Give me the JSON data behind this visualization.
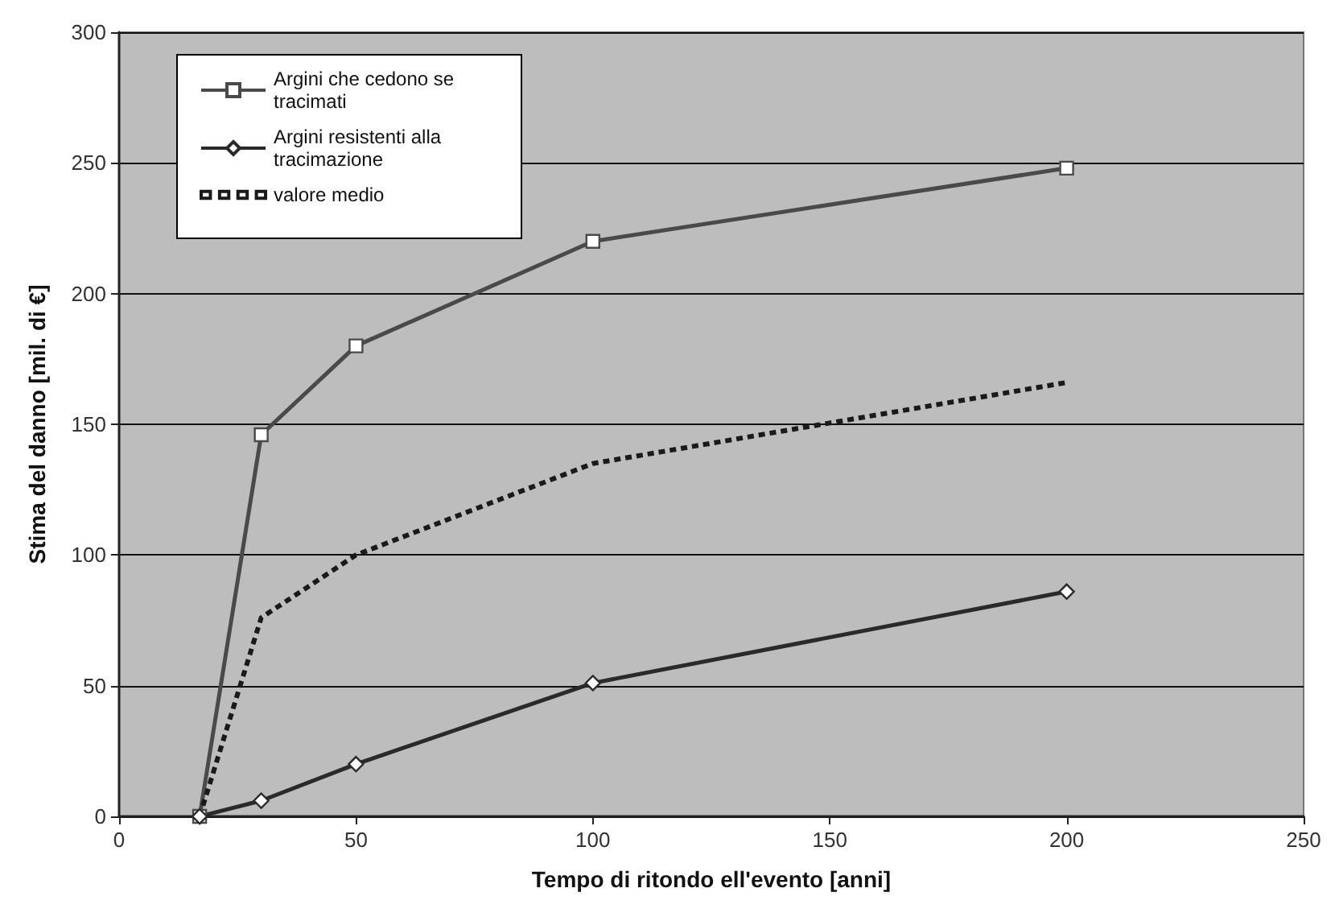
{
  "chart_data": {
    "type": "line",
    "xlabel": "Tempo di ritondo ell'evento [anni]",
    "ylabel": "Stima del danno [mil. di €]",
    "x": [
      17,
      30,
      50,
      100,
      200
    ],
    "series": [
      {
        "name": "Argini che cedono se tracimati",
        "color": "#4a4a4a",
        "marker": "square",
        "values": [
          0,
          146,
          180,
          220,
          248
        ]
      },
      {
        "name": "Argini resistenti alla tracimazione",
        "color": "#2a2a2a",
        "marker": "diamond",
        "values": [
          0,
          6,
          20,
          51,
          86
        ]
      },
      {
        "name": "valore medio",
        "color": "#1a1a1a",
        "marker": "none",
        "line_style": "dotted",
        "values": [
          0,
          76,
          100,
          135,
          166
        ]
      }
    ],
    "xlim": [
      0,
      250
    ],
    "xticks": [
      0,
      50,
      100,
      150,
      200,
      250
    ],
    "ylim": [
      0,
      300
    ],
    "yticks": [
      0,
      50,
      100,
      150,
      200,
      250,
      300
    ],
    "grid": "y",
    "legend": "top left"
  }
}
